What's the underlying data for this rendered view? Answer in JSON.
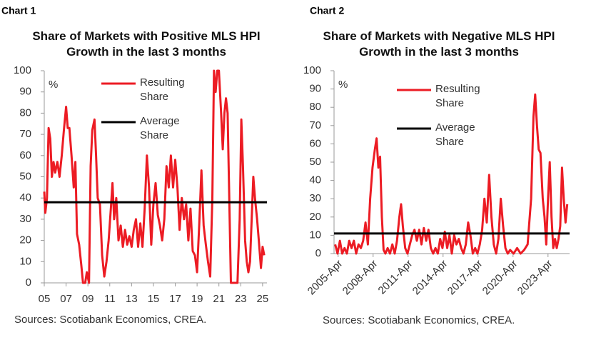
{
  "chart_data": [
    {
      "type": "line",
      "label": "Chart 1",
      "title": "Share of Markets with Positive MLS HPI Growth in the last 3 months",
      "y_unit": "%",
      "source": "Sources: Scotiabank Economics, CREA.",
      "x": [
        2005.0,
        2005.1,
        2005.25,
        2005.4,
        2005.55,
        2005.7,
        2005.85,
        2006.0,
        2006.2,
        2006.4,
        2006.6,
        2006.8,
        2007.0,
        2007.15,
        2007.3,
        2007.5,
        2007.7,
        2007.85,
        2008.0,
        2008.2,
        2008.4,
        2008.55,
        2008.75,
        2008.9,
        2009.1,
        2009.25,
        2009.4,
        2009.6,
        2009.75,
        2009.9,
        2010.1,
        2010.3,
        2010.5,
        2010.7,
        2010.9,
        2011.1,
        2011.25,
        2011.4,
        2011.6,
        2011.8,
        2012.0,
        2012.2,
        2012.4,
        2012.6,
        2012.8,
        2013.0,
        2013.2,
        2013.4,
        2013.6,
        2013.8,
        2014.0,
        2014.2,
        2014.4,
        2014.6,
        2014.8,
        2015.0,
        2015.2,
        2015.4,
        2015.6,
        2015.8,
        2016.0,
        2016.2,
        2016.4,
        2016.6,
        2016.8,
        2017.0,
        2017.2,
        2017.4,
        2017.6,
        2017.8,
        2018.0,
        2018.2,
        2018.4,
        2018.6,
        2018.8,
        2019.0,
        2019.2,
        2019.4,
        2019.6,
        2019.8,
        2020.0,
        2020.2,
        2020.4,
        2020.55,
        2020.7,
        2020.85,
        2021.0,
        2021.2,
        2021.35,
        2021.5,
        2021.65,
        2021.8,
        2021.95,
        2022.1,
        2022.3,
        2022.5,
        2022.7,
        2022.9,
        2023.05,
        2023.2,
        2023.4,
        2023.55,
        2023.7,
        2023.85,
        2024.0,
        2024.15,
        2024.3,
        2024.5,
        2024.7,
        2024.85,
        2025.0,
        2025.15
      ],
      "series": [
        {
          "name": "Resulting Share",
          "color": "#ec1c24",
          "values": [
            43,
            33,
            40,
            73,
            68,
            50,
            57,
            52,
            57,
            50,
            60,
            72,
            83,
            73,
            73,
            60,
            45,
            57,
            23,
            18,
            8,
            0,
            0,
            5,
            0,
            55,
            72,
            77,
            60,
            40,
            37,
            13,
            3,
            10,
            20,
            35,
            47,
            30,
            40,
            20,
            27,
            17,
            25,
            18,
            22,
            17,
            25,
            30,
            17,
            28,
            17,
            35,
            60,
            45,
            18,
            37,
            47,
            32,
            27,
            20,
            30,
            55,
            45,
            60,
            45,
            58,
            45,
            25,
            40,
            30,
            37,
            20,
            35,
            15,
            13,
            5,
            28,
            53,
            27,
            18,
            10,
            3,
            40,
            100,
            90,
            100,
            100,
            80,
            63,
            80,
            87,
            80,
            40,
            0,
            0,
            0,
            0,
            30,
            77,
            55,
            20,
            10,
            5,
            10,
            30,
            50,
            40,
            30,
            17,
            7,
            17,
            13
          ]
        }
      ],
      "average": {
        "name": "Average Share",
        "value": 38,
        "color": "#000000"
      },
      "xlim": [
        2005,
        2025.4
      ],
      "xticks": [
        {
          "value": 2005,
          "label": "05"
        },
        {
          "value": 2007,
          "label": "07"
        },
        {
          "value": 2009,
          "label": "09"
        },
        {
          "value": 2011,
          "label": "11"
        },
        {
          "value": 2013,
          "label": "13"
        },
        {
          "value": 2015,
          "label": "15"
        },
        {
          "value": 2017,
          "label": "17"
        },
        {
          "value": 2019,
          "label": "19"
        },
        {
          "value": 2021,
          "label": "21"
        },
        {
          "value": 2023,
          "label": "23"
        },
        {
          "value": 2025,
          "label": "25"
        }
      ],
      "ylim": [
        0,
        100
      ],
      "yticks": [
        0,
        10,
        20,
        30,
        40,
        50,
        60,
        70,
        80,
        90,
        100
      ]
    },
    {
      "type": "line",
      "label": "Chart 2",
      "title": "Share of Markets with Negative MLS HPI Growth in the last 3 months",
      "y_unit": "%",
      "source": "Sources: Scotiabank Economics, CREA.",
      "x": [
        2005.0,
        2005.2,
        2005.4,
        2005.6,
        2005.8,
        2006.0,
        2006.2,
        2006.4,
        2006.6,
        2006.8,
        2007.0,
        2007.2,
        2007.4,
        2007.6,
        2007.8,
        2008.0,
        2008.2,
        2008.4,
        2008.55,
        2008.7,
        2008.85,
        2009.0,
        2009.15,
        2009.3,
        2009.5,
        2009.7,
        2009.9,
        2010.1,
        2010.3,
        2010.5,
        2010.65,
        2010.8,
        2011.0,
        2011.2,
        2011.4,
        2011.6,
        2011.8,
        2012.0,
        2012.2,
        2012.4,
        2012.6,
        2012.8,
        2013.0,
        2013.2,
        2013.4,
        2013.6,
        2013.8,
        2014.0,
        2014.2,
        2014.4,
        2014.6,
        2014.8,
        2015.0,
        2015.2,
        2015.4,
        2015.6,
        2015.8,
        2016.0,
        2016.2,
        2016.4,
        2016.6,
        2016.8,
        2017.0,
        2017.2,
        2017.4,
        2017.6,
        2017.8,
        2018.0,
        2018.2,
        2018.4,
        2018.6,
        2018.8,
        2019.0,
        2019.2,
        2019.4,
        2019.6,
        2019.8,
        2020.0,
        2020.3,
        2020.6,
        2020.9,
        2021.2,
        2021.5,
        2021.8,
        2022.0,
        2022.15,
        2022.3,
        2022.45,
        2022.6,
        2022.8,
        2022.95,
        2023.1,
        2023.25,
        2023.4,
        2023.55,
        2023.7,
        2023.85,
        2024.0,
        2024.15,
        2024.3,
        2024.45,
        2024.6,
        2024.75,
        2024.9
      ],
      "series": [
        {
          "name": "Resulting Share",
          "color": "#ec1c24",
          "values": [
            5,
            0,
            7,
            0,
            3,
            0,
            7,
            3,
            7,
            0,
            5,
            3,
            7,
            17,
            5,
            30,
            47,
            57,
            63,
            47,
            53,
            20,
            2,
            0,
            3,
            0,
            5,
            0,
            7,
            20,
            27,
            15,
            3,
            0,
            5,
            10,
            13,
            7,
            13,
            5,
            14,
            7,
            13,
            3,
            0,
            3,
            0,
            8,
            3,
            12,
            3,
            10,
            0,
            10,
            5,
            8,
            3,
            0,
            5,
            17,
            10,
            0,
            3,
            0,
            5,
            13,
            30,
            17,
            43,
            20,
            5,
            0,
            8,
            30,
            15,
            3,
            0,
            2,
            0,
            3,
            0,
            2,
            5,
            30,
            75,
            87,
            70,
            57,
            55,
            30,
            20,
            5,
            30,
            50,
            20,
            3,
            8,
            3,
            8,
            15,
            47,
            30,
            17,
            27
          ]
        }
      ],
      "average": {
        "name": "Average Share",
        "value": 11,
        "color": "#000000"
      },
      "xlim": [
        2004.9,
        2025.1
      ],
      "xticks": [
        {
          "value": 2005.25,
          "label": "2005-Apr"
        },
        {
          "value": 2008.25,
          "label": "2008-Apr"
        },
        {
          "value": 2011.25,
          "label": "2011-Apr"
        },
        {
          "value": 2014.25,
          "label": "2014-Apr"
        },
        {
          "value": 2017.25,
          "label": "2017-Apr"
        },
        {
          "value": 2020.25,
          "label": "2020-Apr"
        },
        {
          "value": 2023.25,
          "label": "2023-Apr"
        }
      ],
      "ylim": [
        0,
        100
      ],
      "yticks": [
        0,
        10,
        20,
        30,
        40,
        50,
        60,
        70,
        80,
        90,
        100
      ]
    }
  ]
}
